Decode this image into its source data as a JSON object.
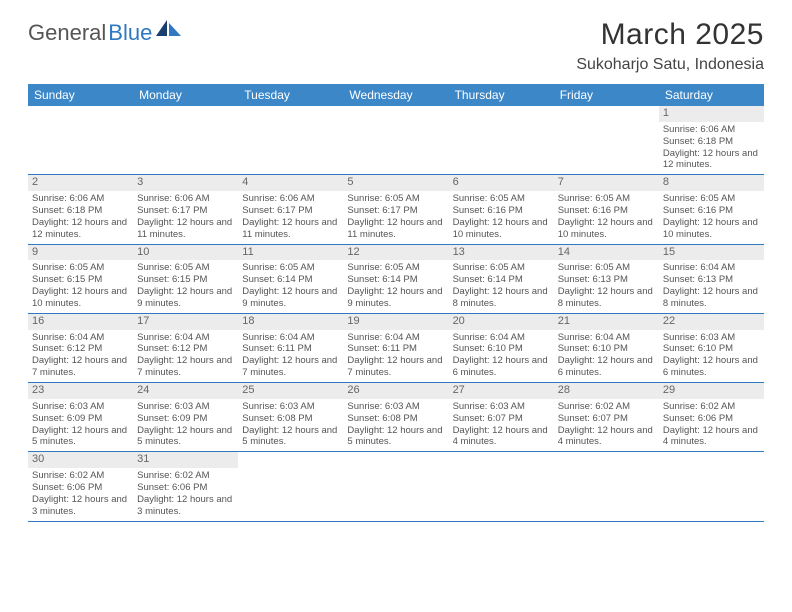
{
  "logo": {
    "text1": "General",
    "text2": "Blue"
  },
  "title": "March 2025",
  "location": "Sukoharjo Satu, Indonesia",
  "dayHeaders": [
    "Sunday",
    "Monday",
    "Tuesday",
    "Wednesday",
    "Thursday",
    "Friday",
    "Saturday"
  ],
  "colors": {
    "headerBg": "#3b87c8",
    "headerText": "#ffffff",
    "rowDivider": "#2f78c2",
    "dayStripBg": "#ececec",
    "bodyText": "#555555",
    "logoAccent": "#2f78c2"
  },
  "typography": {
    "titleFontSize": 30,
    "locationFontSize": 16,
    "headerFontSize": 12,
    "cellFontSize": 9.5
  },
  "weeks": [
    [
      {
        "day": "",
        "sunrise": "",
        "sunset": "",
        "daylight": ""
      },
      {
        "day": "",
        "sunrise": "",
        "sunset": "",
        "daylight": ""
      },
      {
        "day": "",
        "sunrise": "",
        "sunset": "",
        "daylight": ""
      },
      {
        "day": "",
        "sunrise": "",
        "sunset": "",
        "daylight": ""
      },
      {
        "day": "",
        "sunrise": "",
        "sunset": "",
        "daylight": ""
      },
      {
        "day": "",
        "sunrise": "",
        "sunset": "",
        "daylight": ""
      },
      {
        "day": "1",
        "sunrise": "Sunrise: 6:06 AM",
        "sunset": "Sunset: 6:18 PM",
        "daylight": "Daylight: 12 hours and 12 minutes."
      }
    ],
    [
      {
        "day": "2",
        "sunrise": "Sunrise: 6:06 AM",
        "sunset": "Sunset: 6:18 PM",
        "daylight": "Daylight: 12 hours and 12 minutes."
      },
      {
        "day": "3",
        "sunrise": "Sunrise: 6:06 AM",
        "sunset": "Sunset: 6:17 PM",
        "daylight": "Daylight: 12 hours and 11 minutes."
      },
      {
        "day": "4",
        "sunrise": "Sunrise: 6:06 AM",
        "sunset": "Sunset: 6:17 PM",
        "daylight": "Daylight: 12 hours and 11 minutes."
      },
      {
        "day": "5",
        "sunrise": "Sunrise: 6:05 AM",
        "sunset": "Sunset: 6:17 PM",
        "daylight": "Daylight: 12 hours and 11 minutes."
      },
      {
        "day": "6",
        "sunrise": "Sunrise: 6:05 AM",
        "sunset": "Sunset: 6:16 PM",
        "daylight": "Daylight: 12 hours and 10 minutes."
      },
      {
        "day": "7",
        "sunrise": "Sunrise: 6:05 AM",
        "sunset": "Sunset: 6:16 PM",
        "daylight": "Daylight: 12 hours and 10 minutes."
      },
      {
        "day": "8",
        "sunrise": "Sunrise: 6:05 AM",
        "sunset": "Sunset: 6:16 PM",
        "daylight": "Daylight: 12 hours and 10 minutes."
      }
    ],
    [
      {
        "day": "9",
        "sunrise": "Sunrise: 6:05 AM",
        "sunset": "Sunset: 6:15 PM",
        "daylight": "Daylight: 12 hours and 10 minutes."
      },
      {
        "day": "10",
        "sunrise": "Sunrise: 6:05 AM",
        "sunset": "Sunset: 6:15 PM",
        "daylight": "Daylight: 12 hours and 9 minutes."
      },
      {
        "day": "11",
        "sunrise": "Sunrise: 6:05 AM",
        "sunset": "Sunset: 6:14 PM",
        "daylight": "Daylight: 12 hours and 9 minutes."
      },
      {
        "day": "12",
        "sunrise": "Sunrise: 6:05 AM",
        "sunset": "Sunset: 6:14 PM",
        "daylight": "Daylight: 12 hours and 9 minutes."
      },
      {
        "day": "13",
        "sunrise": "Sunrise: 6:05 AM",
        "sunset": "Sunset: 6:14 PM",
        "daylight": "Daylight: 12 hours and 8 minutes."
      },
      {
        "day": "14",
        "sunrise": "Sunrise: 6:05 AM",
        "sunset": "Sunset: 6:13 PM",
        "daylight": "Daylight: 12 hours and 8 minutes."
      },
      {
        "day": "15",
        "sunrise": "Sunrise: 6:04 AM",
        "sunset": "Sunset: 6:13 PM",
        "daylight": "Daylight: 12 hours and 8 minutes."
      }
    ],
    [
      {
        "day": "16",
        "sunrise": "Sunrise: 6:04 AM",
        "sunset": "Sunset: 6:12 PM",
        "daylight": "Daylight: 12 hours and 7 minutes."
      },
      {
        "day": "17",
        "sunrise": "Sunrise: 6:04 AM",
        "sunset": "Sunset: 6:12 PM",
        "daylight": "Daylight: 12 hours and 7 minutes."
      },
      {
        "day": "18",
        "sunrise": "Sunrise: 6:04 AM",
        "sunset": "Sunset: 6:11 PM",
        "daylight": "Daylight: 12 hours and 7 minutes."
      },
      {
        "day": "19",
        "sunrise": "Sunrise: 6:04 AM",
        "sunset": "Sunset: 6:11 PM",
        "daylight": "Daylight: 12 hours and 7 minutes."
      },
      {
        "day": "20",
        "sunrise": "Sunrise: 6:04 AM",
        "sunset": "Sunset: 6:10 PM",
        "daylight": "Daylight: 12 hours and 6 minutes."
      },
      {
        "day": "21",
        "sunrise": "Sunrise: 6:04 AM",
        "sunset": "Sunset: 6:10 PM",
        "daylight": "Daylight: 12 hours and 6 minutes."
      },
      {
        "day": "22",
        "sunrise": "Sunrise: 6:03 AM",
        "sunset": "Sunset: 6:10 PM",
        "daylight": "Daylight: 12 hours and 6 minutes."
      }
    ],
    [
      {
        "day": "23",
        "sunrise": "Sunrise: 6:03 AM",
        "sunset": "Sunset: 6:09 PM",
        "daylight": "Daylight: 12 hours and 5 minutes."
      },
      {
        "day": "24",
        "sunrise": "Sunrise: 6:03 AM",
        "sunset": "Sunset: 6:09 PM",
        "daylight": "Daylight: 12 hours and 5 minutes."
      },
      {
        "day": "25",
        "sunrise": "Sunrise: 6:03 AM",
        "sunset": "Sunset: 6:08 PM",
        "daylight": "Daylight: 12 hours and 5 minutes."
      },
      {
        "day": "26",
        "sunrise": "Sunrise: 6:03 AM",
        "sunset": "Sunset: 6:08 PM",
        "daylight": "Daylight: 12 hours and 5 minutes."
      },
      {
        "day": "27",
        "sunrise": "Sunrise: 6:03 AM",
        "sunset": "Sunset: 6:07 PM",
        "daylight": "Daylight: 12 hours and 4 minutes."
      },
      {
        "day": "28",
        "sunrise": "Sunrise: 6:02 AM",
        "sunset": "Sunset: 6:07 PM",
        "daylight": "Daylight: 12 hours and 4 minutes."
      },
      {
        "day": "29",
        "sunrise": "Sunrise: 6:02 AM",
        "sunset": "Sunset: 6:06 PM",
        "daylight": "Daylight: 12 hours and 4 minutes."
      }
    ],
    [
      {
        "day": "30",
        "sunrise": "Sunrise: 6:02 AM",
        "sunset": "Sunset: 6:06 PM",
        "daylight": "Daylight: 12 hours and 3 minutes."
      },
      {
        "day": "31",
        "sunrise": "Sunrise: 6:02 AM",
        "sunset": "Sunset: 6:06 PM",
        "daylight": "Daylight: 12 hours and 3 minutes."
      },
      {
        "day": "",
        "sunrise": "",
        "sunset": "",
        "daylight": ""
      },
      {
        "day": "",
        "sunrise": "",
        "sunset": "",
        "daylight": ""
      },
      {
        "day": "",
        "sunrise": "",
        "sunset": "",
        "daylight": ""
      },
      {
        "day": "",
        "sunrise": "",
        "sunset": "",
        "daylight": ""
      },
      {
        "day": "",
        "sunrise": "",
        "sunset": "",
        "daylight": ""
      }
    ]
  ]
}
